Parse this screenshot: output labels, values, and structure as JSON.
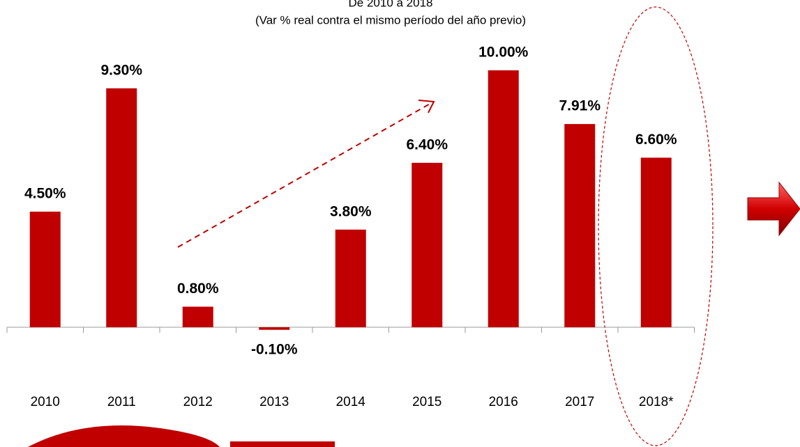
{
  "chart_data": {
    "type": "bar",
    "title": "De 2010 a 2018",
    "subtitle": "(Var % real contra el mismo período del año previo)",
    "categories": [
      "2010",
      "2011",
      "2012",
      "2013",
      "2014",
      "2015",
      "2016",
      "2017",
      "2018*"
    ],
    "values": [
      4.5,
      9.3,
      0.8,
      -0.1,
      3.8,
      6.4,
      10.0,
      7.91,
      6.6
    ],
    "value_labels": [
      "4.50%",
      "9.30%",
      "0.80%",
      "-0.10%",
      "3.80%",
      "6.40%",
      "10.00%",
      "7.91%",
      "6.60%"
    ],
    "color": "#c00000"
  }
}
